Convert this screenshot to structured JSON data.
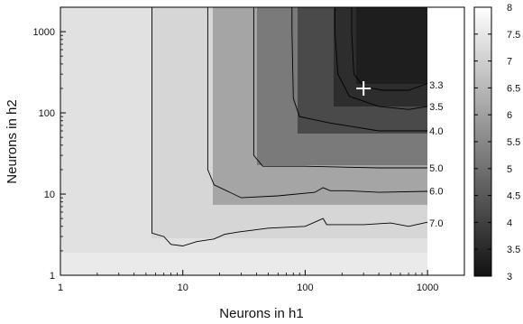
{
  "chart_data": {
    "type": "heatmap",
    "title": "",
    "xlabel": "Neurons in h1",
    "ylabel": "Neurons in h2",
    "xscale": "log",
    "yscale": "log",
    "xlim": [
      1,
      2000
    ],
    "ylim": [
      1,
      2000
    ],
    "x_ticks": [
      {
        "value": 1,
        "label": "1"
      },
      {
        "value": 10,
        "label": "10"
      },
      {
        "value": 100,
        "label": "100"
      },
      {
        "value": 1000,
        "label": "1000"
      }
    ],
    "y_ticks": [
      {
        "value": 1,
        "label": "1"
      },
      {
        "value": 10,
        "label": "10"
      },
      {
        "value": 100,
        "label": "100"
      },
      {
        "value": 1000,
        "label": "1000"
      }
    ],
    "colorbar": {
      "min": 3,
      "max": 8,
      "colormap": "grayscale (dark = low)",
      "ticks": [
        "3",
        "3.5",
        "4",
        "4.5",
        "5",
        "5.5",
        "6",
        "6.5",
        "7",
        "7.5",
        "8"
      ]
    },
    "contours": [
      {
        "level": 3.3,
        "label": "3.3",
        "label_position": [
          1000,
          220
        ],
        "path": [
          [
            240,
            2000
          ],
          [
            240,
            1000
          ],
          [
            250,
            300
          ],
          [
            300,
            210
          ],
          [
            430,
            190
          ],
          [
            700,
            190
          ],
          [
            1000,
            230
          ]
        ]
      },
      {
        "level": 3.5,
        "label": "3.5",
        "label_position": [
          1000,
          120
        ],
        "path": [
          [
            175,
            2000
          ],
          [
            175,
            1000
          ],
          [
            185,
            300
          ],
          [
            230,
            160
          ],
          [
            400,
            120
          ],
          [
            700,
            110
          ],
          [
            1000,
            120
          ]
        ]
      },
      {
        "level": 4.0,
        "label": "4.0",
        "label_position": [
          1000,
          60
        ],
        "path": [
          [
            78,
            2000
          ],
          [
            78,
            1000
          ],
          [
            80,
            150
          ],
          [
            90,
            90
          ],
          [
            160,
            75
          ],
          [
            400,
            60
          ],
          [
            1000,
            60
          ]
        ]
      },
      {
        "level": 5.0,
        "label": "5.0",
        "label_position": [
          1000,
          21
        ],
        "path": [
          [
            38,
            2000
          ],
          [
            38,
            1000
          ],
          [
            38,
            30
          ],
          [
            45,
            22
          ],
          [
            100,
            22
          ],
          [
            400,
            21
          ],
          [
            1000,
            21
          ]
        ]
      },
      {
        "level": 6.0,
        "label": "6.0",
        "label_position": [
          1000,
          11
        ],
        "path": [
          [
            16,
            2000
          ],
          [
            16,
            1000
          ],
          [
            16,
            20
          ],
          [
            18,
            13
          ],
          [
            30,
            9
          ],
          [
            60,
            9.5
          ],
          [
            120,
            10.5
          ],
          [
            140,
            12
          ],
          [
            160,
            11
          ],
          [
            220,
            11
          ],
          [
            400,
            10.5
          ],
          [
            1000,
            10.8
          ]
        ]
      },
      {
        "level": 7.0,
        "label": "7.0",
        "label_position": [
          1000,
          4.4
        ],
        "path": [
          [
            5.6,
            2000
          ],
          [
            5.6,
            1000
          ],
          [
            5.6,
            3.3
          ],
          [
            7,
            3.0
          ],
          [
            8,
            2.4
          ],
          [
            10,
            2.3
          ],
          [
            13,
            2.6
          ],
          [
            18,
            2.8
          ],
          [
            22,
            3.2
          ],
          [
            28,
            3.4
          ],
          [
            50,
            3.8
          ],
          [
            100,
            4.0
          ],
          [
            140,
            5.0
          ],
          [
            150,
            4.2
          ],
          [
            300,
            4.2
          ],
          [
            500,
            4.4
          ],
          [
            700,
            4.0
          ],
          [
            1000,
            4.5
          ]
        ]
      }
    ],
    "optimum_marker": {
      "symbol": "+",
      "x": 300,
      "y": 200
    },
    "grid": false
  }
}
